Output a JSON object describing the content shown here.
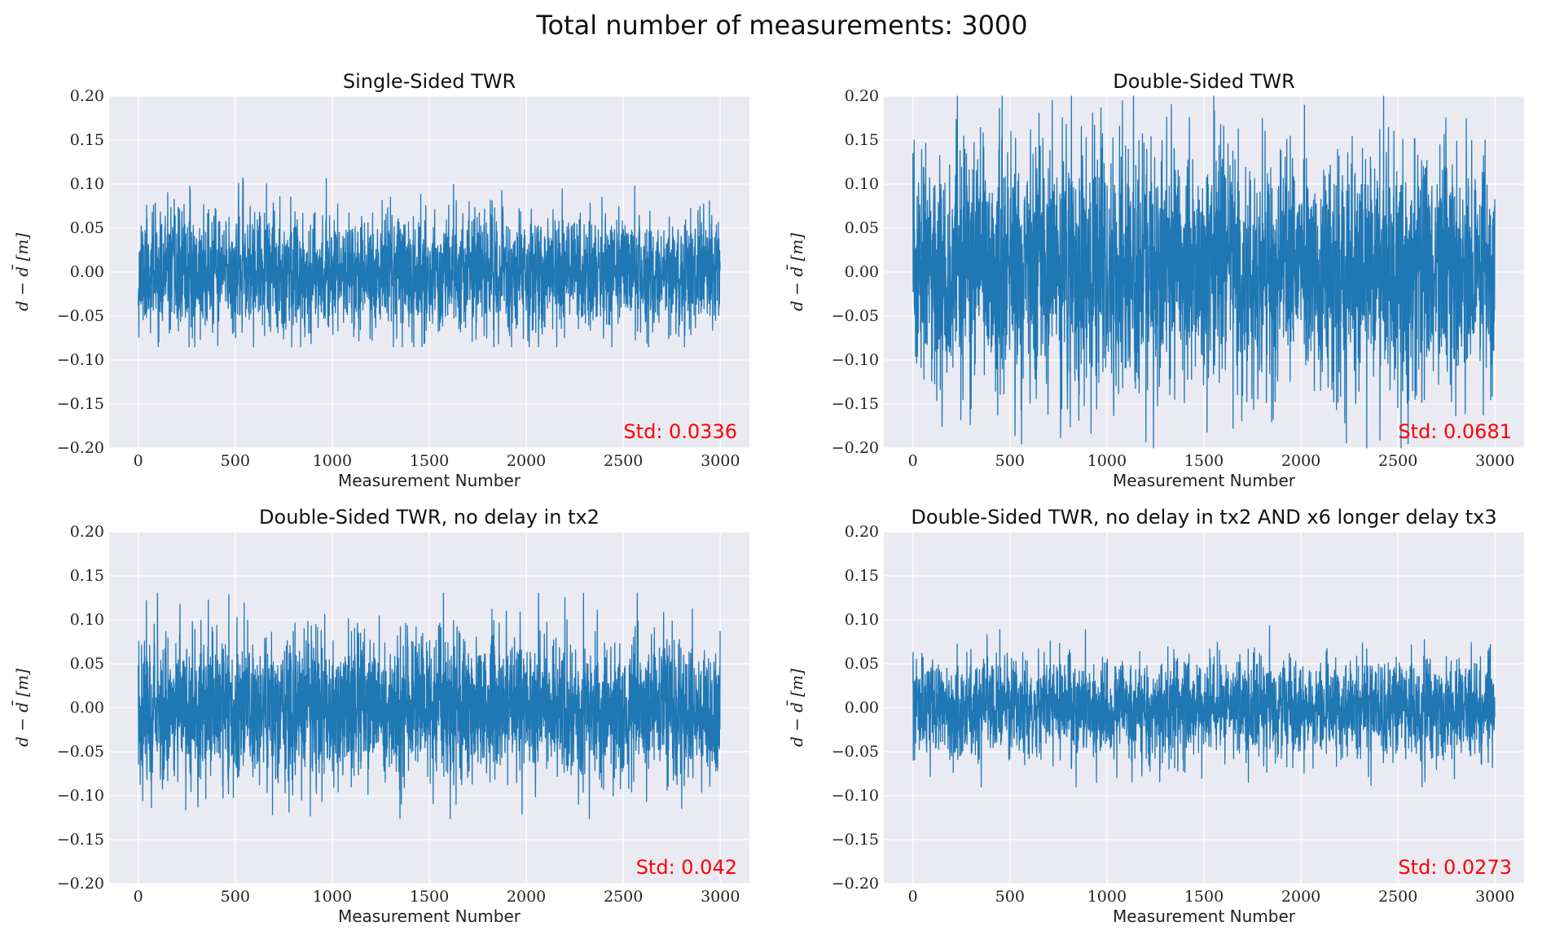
{
  "figure": {
    "title": "Total number of measurements: 3000"
  },
  "colors": {
    "line": "#1f77b4",
    "axes_bg": "#eaeaf2",
    "grid": "#ffffff",
    "std_text": "#ff0000"
  },
  "chart_data": [
    {
      "type": "line",
      "title": "Single-Sided TWR",
      "xlabel": "Measurement Number",
      "ylabel": "d − d̄ [m]",
      "xlim": [
        -150,
        3150
      ],
      "ylim": [
        -0.2,
        0.2
      ],
      "xticks": [
        0,
        500,
        1000,
        1500,
        2000,
        2500,
        3000
      ],
      "yticks": [
        -0.2,
        -0.15,
        -0.1,
        -0.05,
        0.0,
        0.05,
        0.1,
        0.15,
        0.2
      ],
      "ytick_labels": [
        "−0.20",
        "−0.15",
        "−0.10",
        "−0.05",
        "0.00",
        "0.05",
        "0.10",
        "0.15",
        "0.20"
      ],
      "grid": true,
      "annotation": "Std:  0.0336",
      "series": [
        {
          "n": 3000,
          "std": 0.0336,
          "min": -0.085,
          "max": 0.107,
          "seed": 11
        }
      ]
    },
    {
      "type": "line",
      "title": "Double-Sided TWR",
      "xlabel": "Measurement Number",
      "ylabel": "d − d̄ [m]",
      "xlim": [
        -150,
        3150
      ],
      "ylim": [
        -0.2,
        0.2
      ],
      "xticks": [
        0,
        500,
        1000,
        1500,
        2000,
        2500,
        3000
      ],
      "yticks": [
        -0.2,
        -0.15,
        -0.1,
        -0.05,
        0.0,
        0.05,
        0.1,
        0.15,
        0.2
      ],
      "ytick_labels": [
        "−0.20",
        "−0.15",
        "−0.10",
        "−0.05",
        "0.00",
        "0.05",
        "0.10",
        "0.15",
        "0.20"
      ],
      "grid": true,
      "annotation": "Std:  0.0681",
      "series": [
        {
          "n": 3000,
          "std": 0.0681,
          "min": -0.2,
          "max": 0.2,
          "seed": 23
        }
      ]
    },
    {
      "type": "line",
      "title": "Double-Sided TWR, no delay in tx2",
      "xlabel": "Measurement Number",
      "ylabel": "d − d̄ [m]",
      "xlim": [
        -150,
        3150
      ],
      "ylim": [
        -0.2,
        0.2
      ],
      "xticks": [
        0,
        500,
        1000,
        1500,
        2000,
        2500,
        3000
      ],
      "yticks": [
        -0.2,
        -0.15,
        -0.1,
        -0.05,
        0.0,
        0.05,
        0.1,
        0.15,
        0.2
      ],
      "ytick_labels": [
        "−0.20",
        "−0.15",
        "−0.10",
        "−0.05",
        "0.00",
        "0.05",
        "0.10",
        "0.15",
        "0.20"
      ],
      "grid": true,
      "annotation": "Std:  0.042",
      "series": [
        {
          "n": 3000,
          "std": 0.042,
          "min": -0.126,
          "max": 0.13,
          "seed": 37
        }
      ]
    },
    {
      "type": "line",
      "title": "Double-Sided TWR, no delay in tx2 AND x6 longer delay tx3",
      "xlabel": "Measurement Number",
      "ylabel": "d − d̄ [m]",
      "xlim": [
        -150,
        3150
      ],
      "ylim": [
        -0.2,
        0.2
      ],
      "xticks": [
        0,
        500,
        1000,
        1500,
        2000,
        2500,
        3000
      ],
      "yticks": [
        -0.2,
        -0.15,
        -0.1,
        -0.05,
        0.0,
        0.05,
        0.1,
        0.15,
        0.2
      ],
      "ytick_labels": [
        "−0.20",
        "−0.15",
        "−0.10",
        "−0.05",
        "0.00",
        "0.05",
        "0.10",
        "0.15",
        "0.20"
      ],
      "grid": true,
      "annotation": "Std:  0.0273",
      "series": [
        {
          "n": 3000,
          "std": 0.0273,
          "min": -0.09,
          "max": 0.093,
          "seed": 53
        }
      ]
    }
  ]
}
